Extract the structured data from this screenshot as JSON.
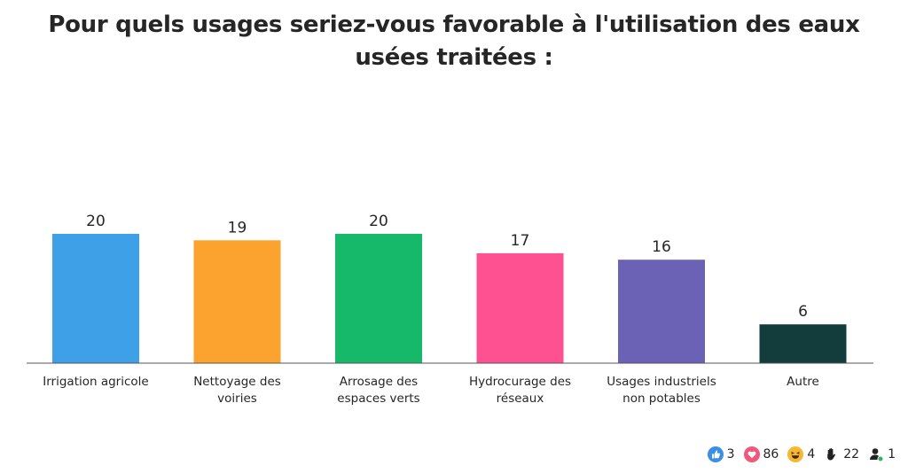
{
  "chart_data": {
    "type": "bar",
    "title": "Pour quels usages seriez-vous favorable à l'utilisation des eaux usées traitées :",
    "categories": [
      [
        "Irrigation agricole"
      ],
      [
        "Nettoyage des",
        "voiries"
      ],
      [
        "Arrosage des",
        "espaces verts"
      ],
      [
        "Hydrocurage des",
        "réseaux"
      ],
      [
        "Usages industriels",
        "non potables"
      ],
      [
        "Autre"
      ]
    ],
    "values": [
      20,
      19,
      20,
      17,
      16,
      6
    ],
    "colors": [
      "#3ea1e8",
      "#fba22f",
      "#16b86a",
      "#fd5192",
      "#6b62b5",
      "#133c3c"
    ],
    "ylim": [
      0,
      20
    ],
    "grid": false
  },
  "footer": {
    "likes": "3",
    "hearts": "86",
    "laughs": "4",
    "hands": "22",
    "participants": "1"
  }
}
